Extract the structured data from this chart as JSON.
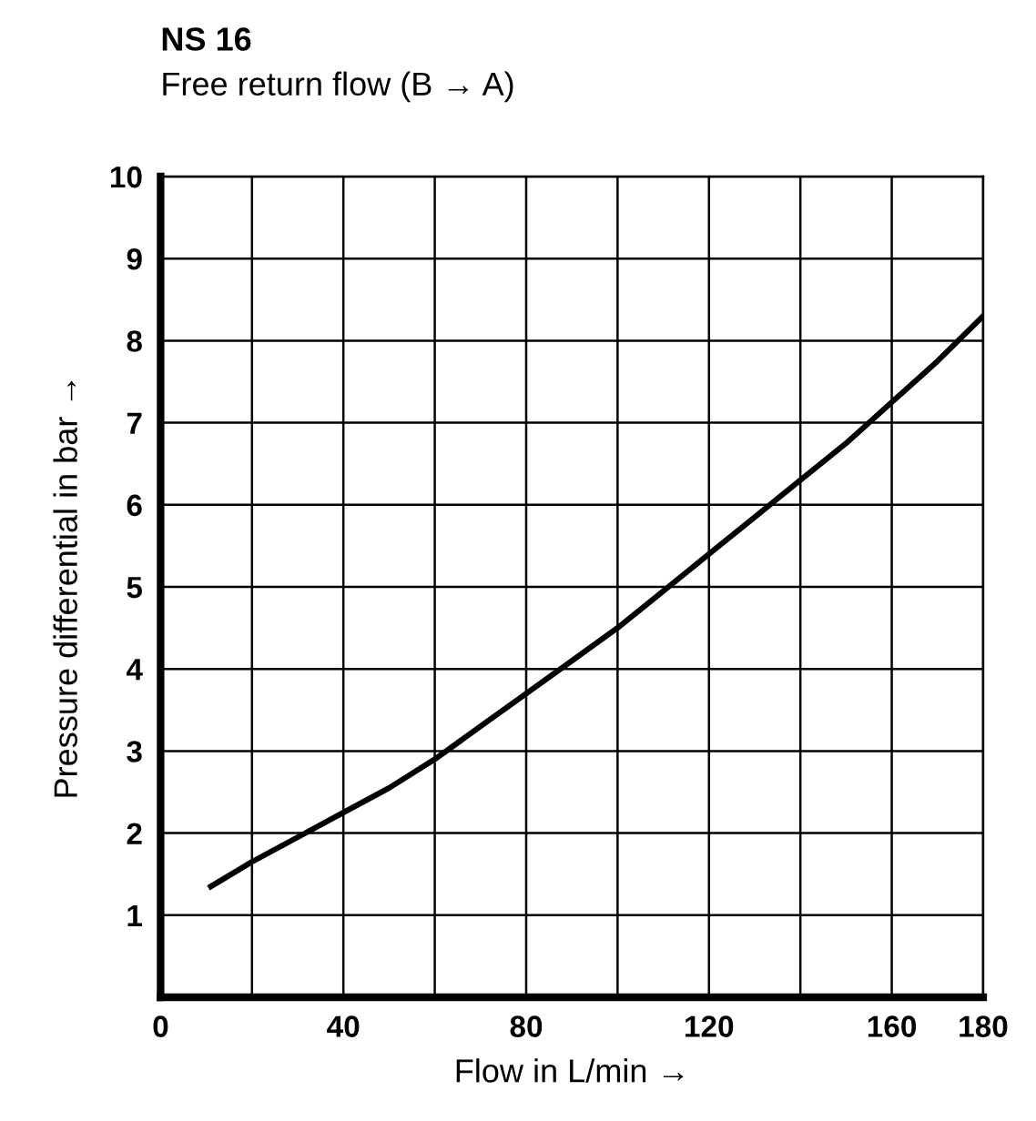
{
  "chart_data": {
    "type": "line",
    "title": "NS 16",
    "subtitle": "Free return flow (B → A)",
    "xlabel": "Flow in L/min →",
    "ylabel": "Pressure differential in bar →",
    "x": [
      11,
      20,
      30,
      40,
      50,
      60,
      70,
      80,
      90,
      100,
      110,
      120,
      130,
      140,
      150,
      160,
      170,
      180
    ],
    "series": [
      {
        "color": "#000000",
        "values": [
          1.35,
          1.65,
          1.95,
          2.25,
          2.55,
          2.9,
          3.3,
          3.7,
          4.1,
          4.5,
          4.95,
          5.4,
          5.85,
          6.3,
          6.75,
          7.25,
          7.75,
          8.3
        ]
      }
    ],
    "xlim": [
      0,
      180
    ],
    "ylim": [
      0,
      10
    ],
    "xticks": [
      0,
      {
        "value": 20,
        "label": null
      },
      40,
      {
        "value": 60,
        "label": null
      },
      80,
      {
        "value": 100,
        "label": null
      },
      120,
      {
        "value": 140,
        "label": null
      },
      160,
      180
    ],
    "yticks": [
      {
        "value": 0,
        "label": null
      },
      1,
      2,
      3,
      4,
      5,
      6,
      7,
      8,
      9,
      10
    ],
    "grid": true,
    "legend": false,
    "marker": "none",
    "line_style": "solid"
  }
}
